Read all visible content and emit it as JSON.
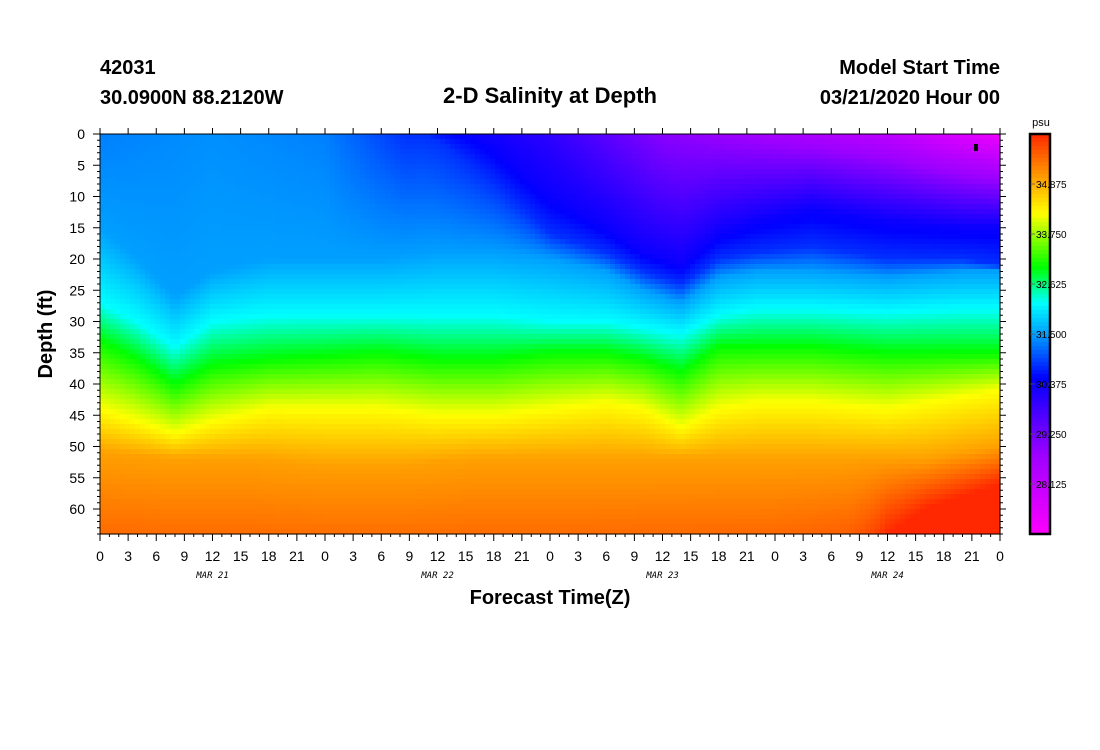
{
  "header": {
    "station_id": "42031",
    "location": "30.0900N 88.2120W",
    "title": "2-D Salinity at Depth",
    "start_label": "Model Start Time",
    "start_value": "03/21/2020 Hour 00"
  },
  "colorbar": {
    "unit": "psu",
    "ticks": [
      "34.875",
      "33.750",
      "32.625",
      "31.500",
      "30.375",
      "29.250",
      "28.125"
    ],
    "tick_values": [
      34.875,
      33.75,
      32.625,
      31.5,
      30.375,
      29.25,
      28.125
    ],
    "min": 27.0,
    "max": 36.0,
    "stops": [
      {
        "v": 27.0,
        "color": "#ff00ff"
      },
      {
        "v": 28.8,
        "color": "#9b00ff"
      },
      {
        "v": 30.5,
        "color": "#0000ff"
      },
      {
        "v": 31.5,
        "color": "#00a0ff"
      },
      {
        "v": 32.2,
        "color": "#00ffff"
      },
      {
        "v": 33.0,
        "color": "#00ff00"
      },
      {
        "v": 34.2,
        "color": "#ffff00"
      },
      {
        "v": 35.0,
        "color": "#ffa000"
      },
      {
        "v": 36.0,
        "color": "#ff2800"
      }
    ]
  },
  "chart_data": {
    "type": "heatmap",
    "xlabel": "Forecast Time(Z)",
    "ylabel": "Depth (ft)",
    "x_tick_labels": [
      "0",
      "3",
      "6",
      "9",
      "12",
      "15",
      "18",
      "21",
      "0",
      "3",
      "6",
      "9",
      "12",
      "15",
      "18",
      "21",
      "0",
      "3",
      "6",
      "9",
      "12",
      "15",
      "18",
      "21",
      "0",
      "3",
      "6",
      "9",
      "12",
      "15",
      "18",
      "21",
      "0"
    ],
    "date_labels": [
      {
        "label": "MAR 21",
        "hour": 12
      },
      {
        "label": "MAR 22",
        "hour": 36
      },
      {
        "label": "MAR 23",
        "hour": 60
      },
      {
        "label": "MAR 24",
        "hour": 84
      }
    ],
    "xlim": [
      0,
      96
    ],
    "y_tick_labels": [
      "0",
      "5",
      "10",
      "15",
      "20",
      "25",
      "30",
      "35",
      "40",
      "45",
      "50",
      "55",
      "60"
    ],
    "ylim": [
      0,
      64
    ],
    "value_unit": "psu",
    "surface_salinity": [
      {
        "hour": 0,
        "value": 31.3
      },
      {
        "hour": 12,
        "value": 31.4
      },
      {
        "hour": 24,
        "value": 31.3
      },
      {
        "hour": 36,
        "value": 30.6
      },
      {
        "hour": 48,
        "value": 30.0
      },
      {
        "hour": 60,
        "value": 29.0
      },
      {
        "hour": 72,
        "value": 28.6
      },
      {
        "hour": 84,
        "value": 28.2
      },
      {
        "hour": 96,
        "value": 27.3
      }
    ],
    "isohaline_depth_ft": [
      {
        "value": 30.4,
        "points": [
          [
            0,
            -8
          ],
          [
            12,
            -8
          ],
          [
            24,
            -8
          ],
          [
            30,
            -8
          ],
          [
            36,
            -4
          ],
          [
            42,
            2
          ],
          [
            48,
            10
          ],
          [
            54,
            15
          ],
          [
            58,
            19
          ],
          [
            62,
            21
          ],
          [
            66,
            16
          ],
          [
            70,
            14
          ],
          [
            76,
            12
          ],
          [
            84,
            14
          ],
          [
            92,
            15
          ],
          [
            96,
            15
          ]
        ]
      },
      {
        "value": 30.8,
        "points": [
          [
            0,
            -5
          ],
          [
            12,
            -4
          ],
          [
            24,
            -4
          ],
          [
            30,
            -3
          ],
          [
            36,
            1
          ],
          [
            42,
            8
          ],
          [
            48,
            16
          ],
          [
            54,
            19
          ],
          [
            58,
            22
          ],
          [
            62,
            24
          ],
          [
            66,
            20
          ],
          [
            70,
            19
          ],
          [
            76,
            18
          ],
          [
            84,
            20
          ],
          [
            92,
            20
          ],
          [
            96,
            21
          ]
        ]
      },
      {
        "value": 31.5,
        "points": [
          [
            0,
            15
          ],
          [
            4,
            20
          ],
          [
            8,
            26
          ],
          [
            12,
            22
          ],
          [
            18,
            20
          ],
          [
            24,
            20
          ],
          [
            30,
            20
          ],
          [
            36,
            19
          ],
          [
            42,
            19
          ],
          [
            48,
            20
          ],
          [
            54,
            22
          ],
          [
            58,
            25
          ],
          [
            62,
            27
          ],
          [
            66,
            23
          ],
          [
            70,
            22
          ],
          [
            76,
            22
          ],
          [
            84,
            23
          ],
          [
            92,
            22
          ],
          [
            96,
            22
          ]
        ]
      },
      {
        "value": 32.2,
        "points": [
          [
            0,
            27
          ],
          [
            4,
            30
          ],
          [
            8,
            34
          ],
          [
            12,
            30
          ],
          [
            18,
            29
          ],
          [
            24,
            29
          ],
          [
            30,
            29
          ],
          [
            36,
            29
          ],
          [
            42,
            29
          ],
          [
            48,
            30
          ],
          [
            54,
            30
          ],
          [
            58,
            31
          ],
          [
            62,
            32
          ],
          [
            66,
            29
          ],
          [
            70,
            28
          ],
          [
            76,
            28
          ],
          [
            84,
            28.5
          ],
          [
            92,
            28
          ],
          [
            96,
            28
          ]
        ]
      },
      {
        "value": 33.0,
        "points": [
          [
            0,
            33
          ],
          [
            4,
            36
          ],
          [
            8,
            40
          ],
          [
            12,
            37
          ],
          [
            18,
            36
          ],
          [
            24,
            35.5
          ],
          [
            30,
            35
          ],
          [
            36,
            36
          ],
          [
            42,
            36
          ],
          [
            48,
            35
          ],
          [
            54,
            35
          ],
          [
            58,
            36
          ],
          [
            62,
            38
          ],
          [
            66,
            34
          ],
          [
            70,
            34
          ],
          [
            76,
            34
          ],
          [
            84,
            35
          ],
          [
            92,
            35
          ],
          [
            96,
            35
          ]
        ]
      },
      {
        "value": 34.2,
        "points": [
          [
            0,
            44
          ],
          [
            4,
            46
          ],
          [
            8,
            48
          ],
          [
            12,
            46
          ],
          [
            18,
            44
          ],
          [
            24,
            44
          ],
          [
            30,
            44
          ],
          [
            36,
            45
          ],
          [
            42,
            45
          ],
          [
            48,
            44
          ],
          [
            54,
            43
          ],
          [
            58,
            44
          ],
          [
            62,
            47
          ],
          [
            66,
            44
          ],
          [
            70,
            43
          ],
          [
            76,
            43
          ],
          [
            84,
            44
          ],
          [
            92,
            42
          ],
          [
            96,
            41
          ]
        ]
      },
      {
        "value": 35.0,
        "points": [
          [
            0,
            51
          ],
          [
            8,
            52
          ],
          [
            16,
            52
          ],
          [
            24,
            53
          ],
          [
            32,
            53
          ],
          [
            40,
            52
          ],
          [
            48,
            52
          ],
          [
            56,
            52
          ],
          [
            64,
            52
          ],
          [
            72,
            52
          ],
          [
            80,
            52
          ],
          [
            84,
            52
          ],
          [
            88,
            52
          ],
          [
            92,
            51
          ],
          [
            96,
            50
          ]
        ]
      },
      {
        "value": 36.0,
        "points": [
          [
            0,
            80
          ],
          [
            48,
            80
          ],
          [
            72,
            78
          ],
          [
            80,
            74
          ],
          [
            84,
            64
          ],
          [
            88,
            60
          ],
          [
            92,
            58
          ],
          [
            96,
            56
          ]
        ]
      }
    ]
  }
}
